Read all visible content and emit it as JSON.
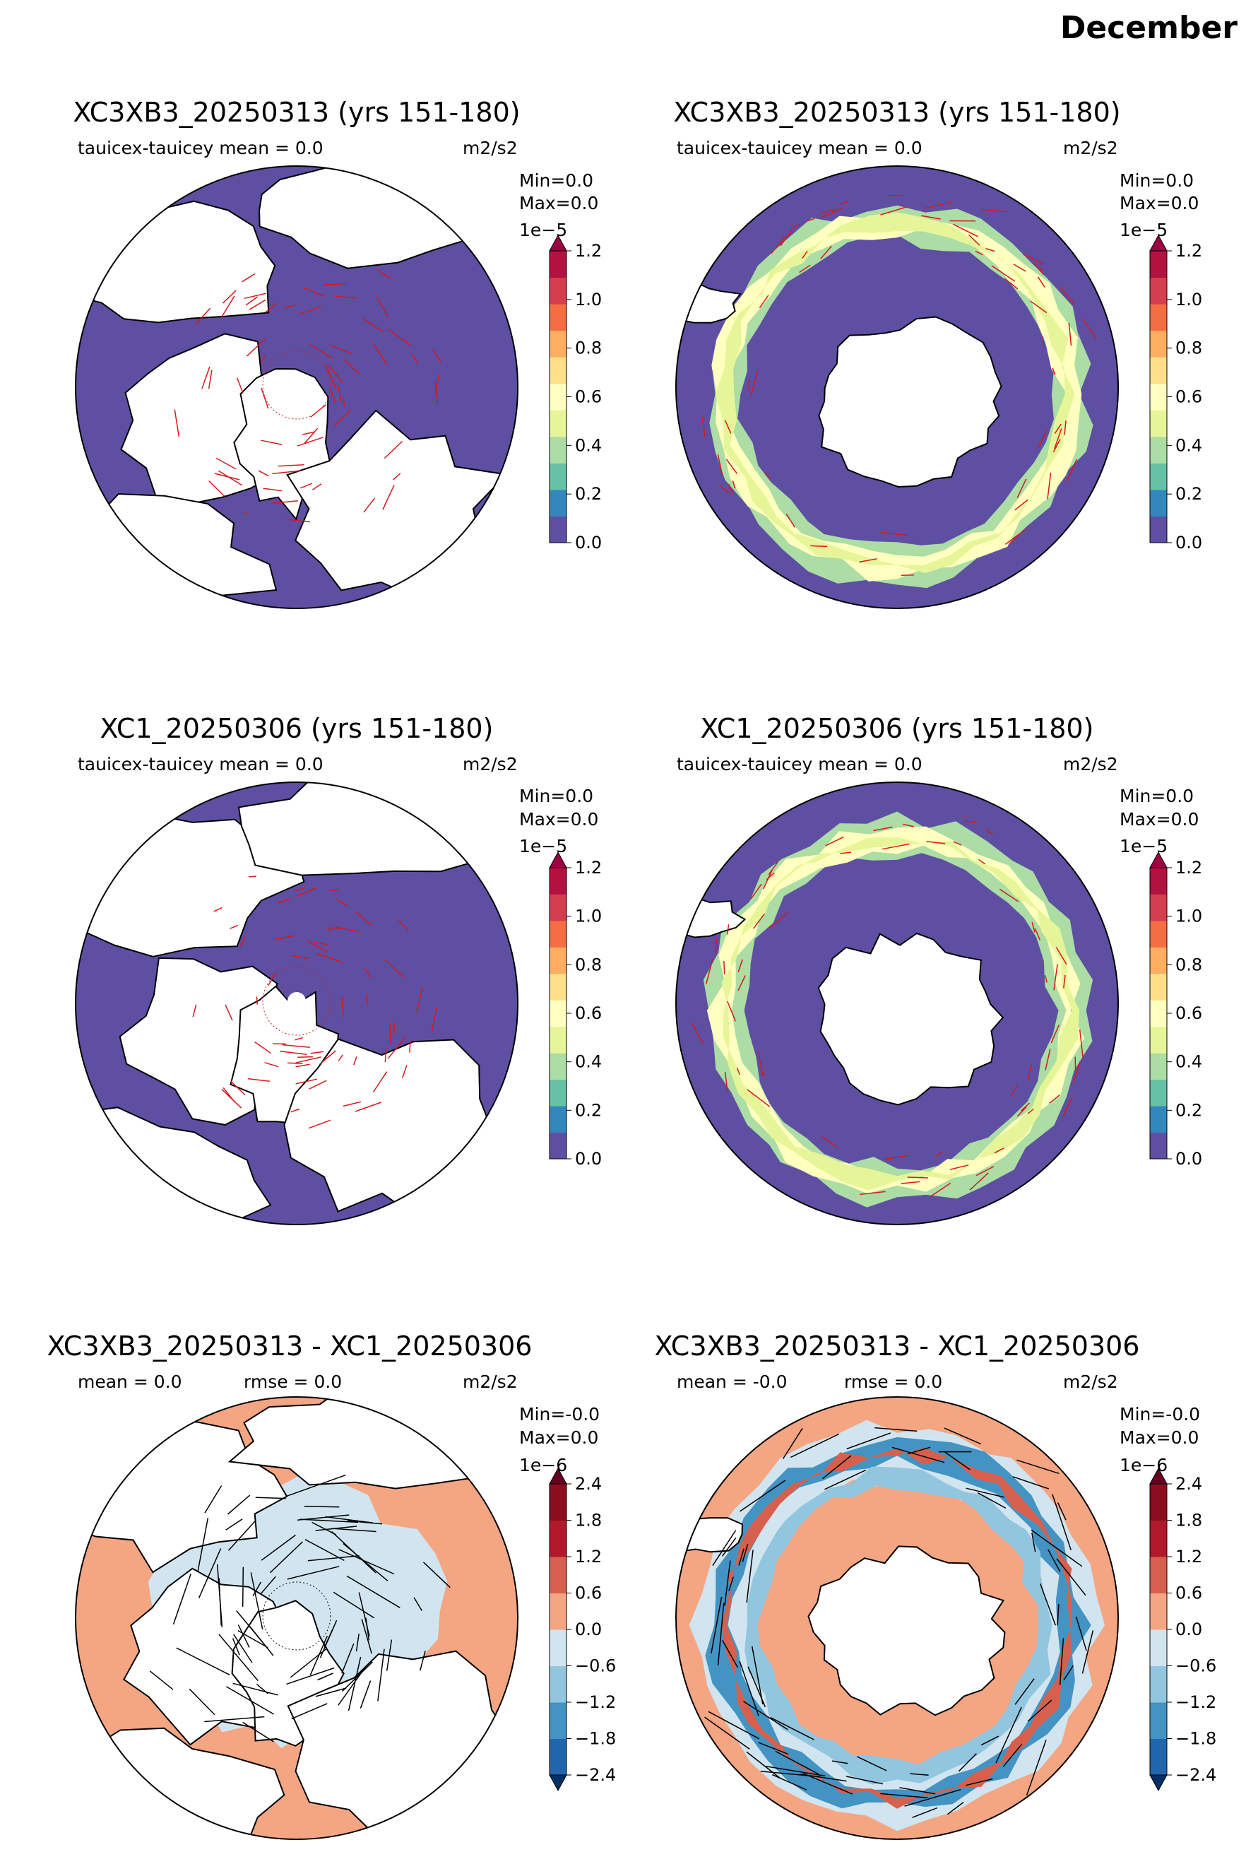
{
  "figure": {
    "month": "December"
  },
  "panels": [
    {
      "id": "p1",
      "hemisphere": "north",
      "kind": "model",
      "title": "XC3XB3_20250313 (yrs 151-180)",
      "stats": [
        "tauicex-tauicey  mean = 0.0"
      ],
      "units": "m2/s2",
      "min_label": "Min=0.0",
      "max_label": " Max=0.0",
      "scale_label": "1e−5",
      "colorbar": {
        "ticks": [
          "0.0",
          "0.2",
          "0.4",
          "0.6",
          "0.8",
          "1.0",
          "1.2"
        ],
        "colors": [
          "#5e4fa2",
          "#3288bd",
          "#66c2a5",
          "#abdda4",
          "#e6f598",
          "#ffffbf",
          "#fee08b",
          "#fdae61",
          "#f46d43",
          "#d53e4f",
          "#b2123f"
        ],
        "over_color": "#9e0142",
        "extend": "max"
      },
      "vector_color": "#d7191c",
      "ocean_color": "#5e4fa2"
    },
    {
      "id": "p2",
      "hemisphere": "south",
      "kind": "model",
      "title": "XC3XB3_20250313 (yrs 151-180)",
      "stats": [
        "tauicex-tauicey  mean = 0.0"
      ],
      "units": "m2/s2",
      "min_label": "Min=0.0",
      "max_label": " Max=0.0",
      "scale_label": "1e−5",
      "colorbar": {
        "ticks": [
          "0.0",
          "0.2",
          "0.4",
          "0.6",
          "0.8",
          "1.0",
          "1.2"
        ],
        "colors": [
          "#5e4fa2",
          "#3288bd",
          "#66c2a5",
          "#abdda4",
          "#e6f598",
          "#ffffbf",
          "#fee08b",
          "#fdae61",
          "#f46d43",
          "#d53e4f",
          "#b2123f"
        ],
        "over_color": "#9e0142",
        "extend": "max"
      },
      "vector_color": "#d7191c",
      "ocean_color": "#5e4fa2"
    },
    {
      "id": "p3",
      "hemisphere": "north",
      "kind": "model",
      "title": "XC1_20250306 (yrs 151-180)",
      "stats": [
        "tauicex-tauicey  mean = 0.0"
      ],
      "units": "m2/s2",
      "min_label": "Min=0.0",
      "max_label": " Max=0.0",
      "scale_label": "1e−5",
      "colorbar": {
        "ticks": [
          "0.0",
          "0.2",
          "0.4",
          "0.6",
          "0.8",
          "1.0",
          "1.2"
        ],
        "colors": [
          "#5e4fa2",
          "#3288bd",
          "#66c2a5",
          "#abdda4",
          "#e6f598",
          "#ffffbf",
          "#fee08b",
          "#fdae61",
          "#f46d43",
          "#d53e4f",
          "#b2123f"
        ],
        "over_color": "#9e0142",
        "extend": "max"
      },
      "vector_color": "#d7191c",
      "ocean_color": "#5e4fa2"
    },
    {
      "id": "p4",
      "hemisphere": "south",
      "kind": "model",
      "title": "XC1_20250306 (yrs 151-180)",
      "stats": [
        "tauicex-tauicey  mean = 0.0"
      ],
      "units": "m2/s2",
      "min_label": "Min=0.0",
      "max_label": " Max=0.0",
      "scale_label": "1e−5",
      "colorbar": {
        "ticks": [
          "0.0",
          "0.2",
          "0.4",
          "0.6",
          "0.8",
          "1.0",
          "1.2"
        ],
        "colors": [
          "#5e4fa2",
          "#3288bd",
          "#66c2a5",
          "#abdda4",
          "#e6f598",
          "#ffffbf",
          "#fee08b",
          "#fdae61",
          "#f46d43",
          "#d53e4f",
          "#b2123f"
        ],
        "over_color": "#9e0142",
        "extend": "max"
      },
      "vector_color": "#d7191c",
      "ocean_color": "#5e4fa2"
    },
    {
      "id": "p5",
      "hemisphere": "north",
      "kind": "diff",
      "title": "XC3XB3_20250313 - XC1_20250306",
      "stats": [
        "mean = 0.0",
        "rmse = 0.0"
      ],
      "units": "m2/s2",
      "min_label": "Min=-0.0",
      "max_label": "Max=0.0",
      "scale_label": "1e−6",
      "colorbar": {
        "ticks": [
          "−2.4",
          "−1.8",
          "−1.2",
          "−0.6",
          "0.0",
          "0.6",
          "1.2",
          "1.8",
          "2.4"
        ],
        "colors": [
          "#2166ac",
          "#4393c3",
          "#92c5de",
          "#d1e5f0",
          "#f4a582",
          "#d6604d",
          "#b2182b",
          "#8b0d1f"
        ],
        "over_color": "#67001f",
        "under_color": "#053061",
        "extend": "both"
      },
      "vector_color": "#000000",
      "ocean_color": "#f4a582"
    },
    {
      "id": "p6",
      "hemisphere": "south",
      "kind": "diff",
      "title": "XC3XB3_20250313 - XC1_20250306",
      "stats": [
        "mean = -0.0",
        "rmse = 0.0"
      ],
      "units": "m2/s2",
      "min_label": "Min=-0.0",
      "max_label": "Max=0.0",
      "scale_label": "1e−6",
      "colorbar": {
        "ticks": [
          "−2.4",
          "−1.8",
          "−1.2",
          "−0.6",
          "0.0",
          "0.6",
          "1.2",
          "1.8",
          "2.4"
        ],
        "colors": [
          "#2166ac",
          "#4393c3",
          "#92c5de",
          "#d1e5f0",
          "#f4a582",
          "#d6604d",
          "#b2182b",
          "#8b0d1f"
        ],
        "over_color": "#67001f",
        "under_color": "#053061",
        "extend": "both"
      },
      "vector_color": "#000000",
      "ocean_color": "#f4a582"
    }
  ]
}
